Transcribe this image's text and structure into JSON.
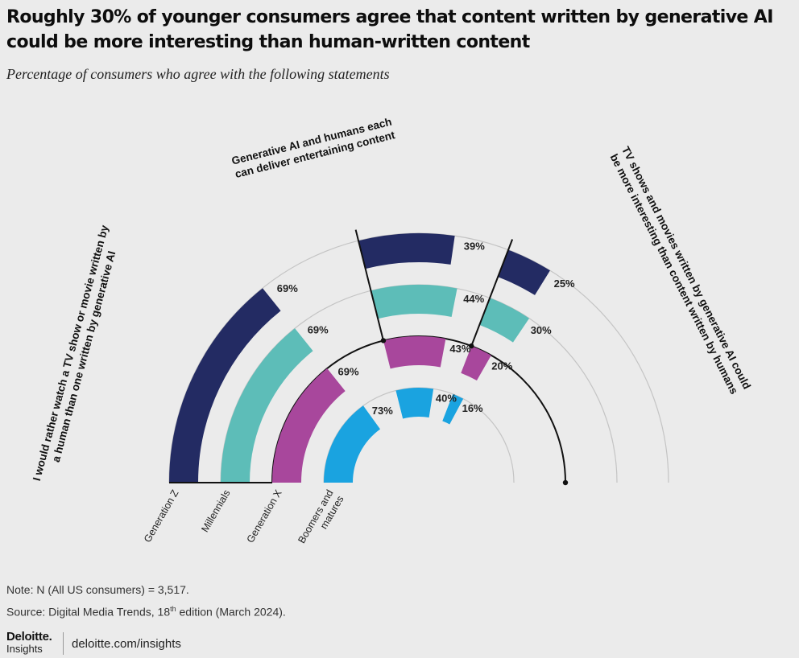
{
  "title": "Roughly 30% of younger consumers agree that content written by generative AI could be more interesting than human-written content",
  "subtitle": "Percentage of consumers who agree with the following statements",
  "note": "Note: N (All US consumers) = 3,517.",
  "source_prefix": "Source: Digital Media Trends, 18",
  "source_sup": "th",
  "source_suffix": " edition (March 2024).",
  "brand": {
    "name": "Deloitte.",
    "sub": "Insights",
    "url": "deloitte.com/insights"
  },
  "colors": {
    "Generation Z": "#232b63",
    "Millennials": "#5dbdb8",
    "Generation X": "#a8479c",
    "Boomers and matures": "#1aa3e0"
  },
  "chart_data": {
    "type": "radial bar",
    "categories": [
      "Generation Z",
      "Millennials",
      "Generation X",
      "Boomers and matures"
    ],
    "series": [
      {
        "name": "I would rather watch a TV show or movie written by a human than one written by generative AI",
        "values": [
          69,
          69,
          69,
          73
        ]
      },
      {
        "name": "Generative AI and humans each can deliver entertaining content",
        "values": [
          39,
          44,
          43,
          40
        ]
      },
      {
        "name": "TV shows and movies written by generative AI could be more interesting than content written by humans",
        "values": [
          25,
          30,
          20,
          16
        ]
      }
    ],
    "value_unit": "%"
  }
}
